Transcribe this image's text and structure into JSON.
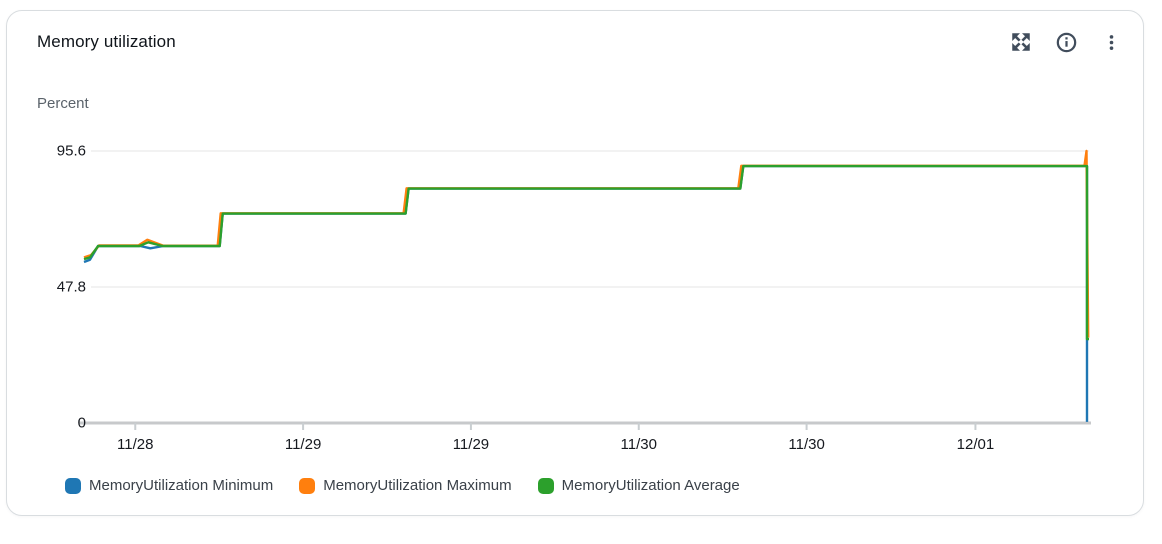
{
  "card": {
    "title": "Memory utilization"
  },
  "header_icons": [
    "expand-icon",
    "info-icon",
    "kebab-menu-icon"
  ],
  "chart_data": {
    "type": "line",
    "title": "Memory utilization",
    "ylabel": "Percent",
    "xlabel": "",
    "ylim": [
      0,
      95.6
    ],
    "grid": "horizontal-only",
    "legend_position": "bottom",
    "y_axis": {
      "ticks": [
        {
          "value": 95.6,
          "label": "95.6"
        },
        {
          "value": 47.8,
          "label": "47.8"
        },
        {
          "value": 0,
          "label": "0"
        }
      ]
    },
    "x_axis": {
      "ticks": [
        {
          "pos_pct": 5.1,
          "label": "11/28"
        },
        {
          "pos_pct": 21.8,
          "label": "11/29"
        },
        {
          "pos_pct": 38.5,
          "label": "11/29"
        },
        {
          "pos_pct": 55.2,
          "label": "11/30"
        },
        {
          "pos_pct": 71.9,
          "label": "11/30"
        },
        {
          "pos_pct": 88.7,
          "label": "12/01"
        }
      ]
    },
    "series": [
      {
        "name": "MemoryUtilization Minimum",
        "color": "#1f77b4",
        "points": [
          [
            0,
            56.6
          ],
          [
            0.6,
            57.4
          ],
          [
            1.4,
            62.2
          ],
          [
            5.6,
            62.2
          ],
          [
            6.6,
            61.4
          ],
          [
            7.9,
            62.2
          ],
          [
            13.5,
            62.2
          ],
          [
            13.8,
            73.6
          ],
          [
            32.0,
            73.6
          ],
          [
            32.3,
            82.4
          ],
          [
            65.3,
            82.4
          ],
          [
            65.6,
            90.3
          ],
          [
            99.8,
            90.3
          ],
          [
            99.8,
            0.4
          ]
        ]
      },
      {
        "name": "MemoryUtilization Maximum",
        "color": "#ff7f0e",
        "points": [
          [
            0,
            58.2
          ],
          [
            0.7,
            59.0
          ],
          [
            1.5,
            62.4
          ],
          [
            5.4,
            62.4
          ],
          [
            6.3,
            64.4
          ],
          [
            7.9,
            62.3
          ],
          [
            13.3,
            62.3
          ],
          [
            13.6,
            73.7
          ],
          [
            31.8,
            73.7
          ],
          [
            32.1,
            82.5
          ],
          [
            65.1,
            82.5
          ],
          [
            65.4,
            90.4
          ],
          [
            99.55,
            90.4
          ],
          [
            99.75,
            95.6
          ],
          [
            99.92,
            30.0
          ]
        ]
      },
      {
        "name": "MemoryUtilization Average",
        "color": "#2ca02c",
        "points": [
          [
            0,
            57.6
          ],
          [
            0.6,
            58.2
          ],
          [
            1.4,
            62.2
          ],
          [
            5.5,
            62.2
          ],
          [
            6.4,
            63.5
          ],
          [
            7.8,
            62.2
          ],
          [
            13.5,
            62.2
          ],
          [
            13.8,
            73.6
          ],
          [
            32.0,
            73.6
          ],
          [
            32.3,
            82.4
          ],
          [
            65.3,
            82.4
          ],
          [
            65.6,
            90.3
          ],
          [
            99.8,
            90.3
          ],
          [
            99.8,
            29.5
          ],
          [
            100,
            29.5
          ]
        ]
      }
    ]
  }
}
